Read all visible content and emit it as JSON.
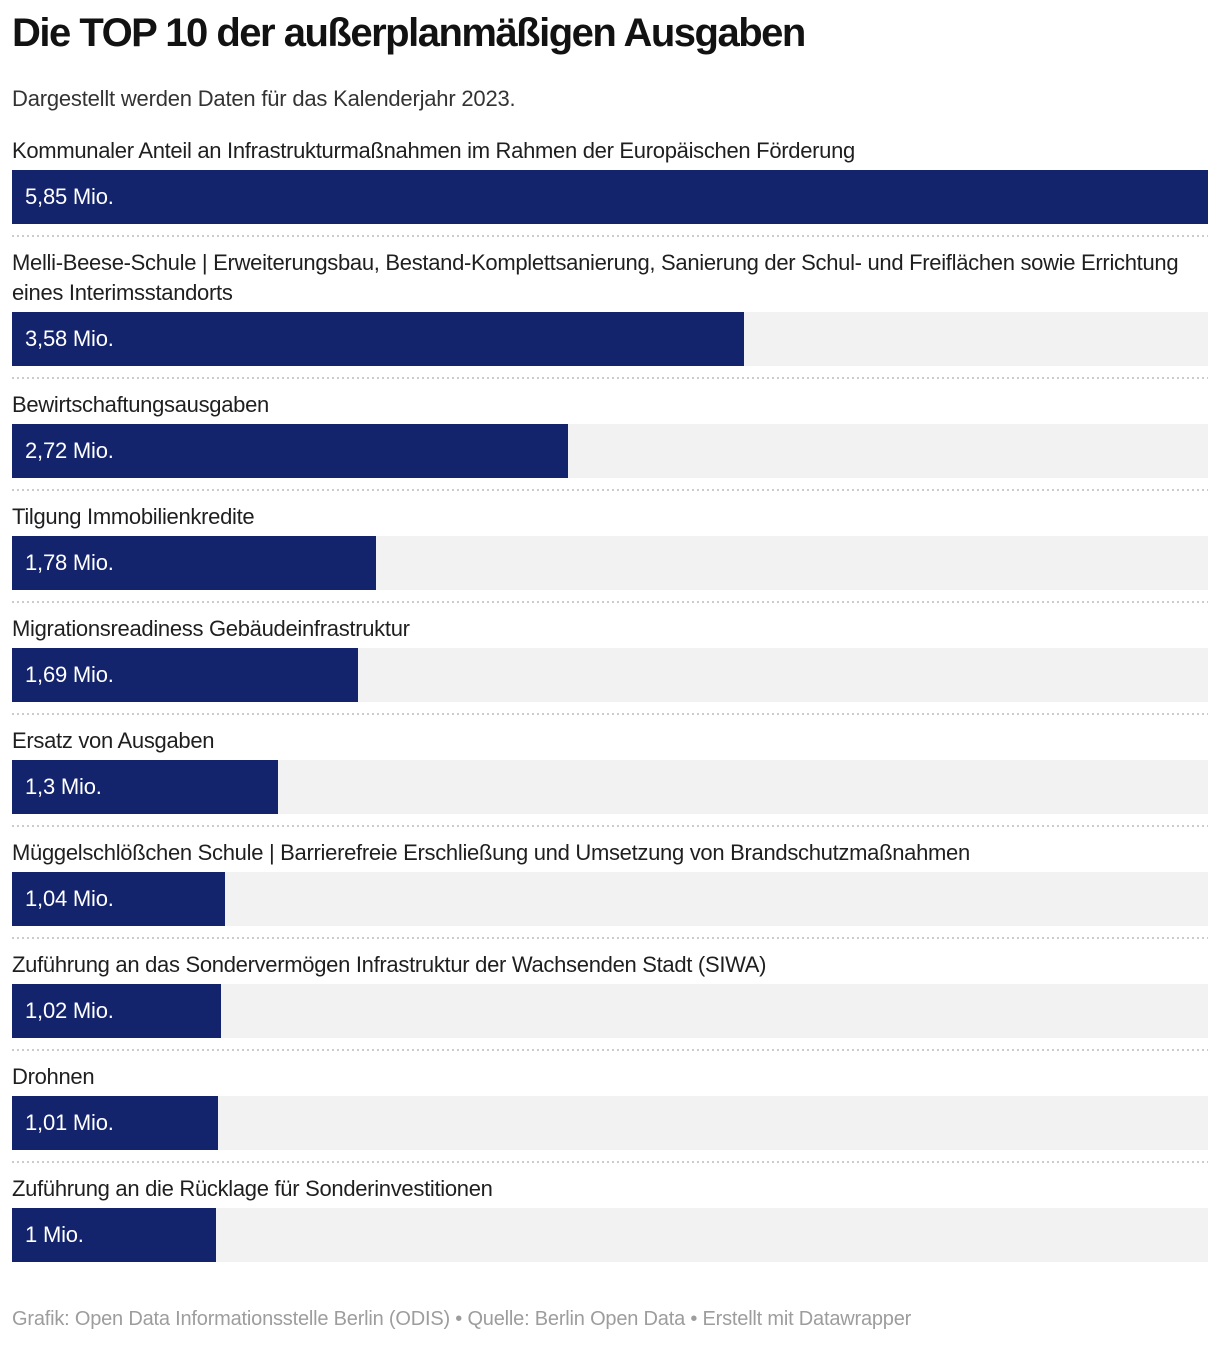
{
  "header": {
    "title": "Die TOP 10 der außerplanmäßigen Ausgaben",
    "subtitle": "Dargestellt werden Daten für das Kalenderjahr 2023."
  },
  "footer": {
    "text": "Grafik: Open Data Informationsstelle Berlin (ODIS) • Quelle: Berlin Open Data • Erstellt mit Datawrapper"
  },
  "colors": {
    "bar": "#13246d",
    "track": "#f2f2f2",
    "separator": "#cccccc",
    "value_text": "#ffffff"
  },
  "chart_data": {
    "type": "bar",
    "orientation": "horizontal",
    "title": "Die TOP 10 der außerplanmäßigen Ausgaben",
    "subtitle": "Dargestellt werden Daten für das Kalenderjahr 2023.",
    "unit": "Mio.",
    "xlim": [
      0,
      5.85
    ],
    "grid": false,
    "legend": false,
    "categories": [
      "Kommunaler Anteil an Infrastrukturmaßnahmen im Rahmen der Europäischen Förderung",
      "Melli-Beese-Schule | Erweiterungsbau, Bestand-Komplettsanierung, Sanierung der Schul- und Freiflächen sowie Errichtung eines Interimsstandorts",
      "Bewirtschaftungsausgaben",
      "Tilgung Immobilienkredite",
      "Migrationsreadiness Gebäudeinfrastruktur",
      "Ersatz von Ausgaben",
      "Müggelschlößchen Schule | Barrierefreie Erschließung und Umsetzung von Brandschutzmaßnahmen",
      "Zuführung an das Sondervermögen Infrastruktur der Wachsenden Stadt (SIWA)",
      "Drohnen",
      "Zuführung an die Rücklage für Sonderinvestitionen"
    ],
    "values": [
      5.85,
      3.58,
      2.72,
      1.78,
      1.69,
      1.3,
      1.04,
      1.02,
      1.01,
      1.0
    ],
    "value_labels": [
      "5,85 Mio.",
      "3,58 Mio.",
      "2,72 Mio.",
      "1,78 Mio.",
      "1,69 Mio.",
      "1,3 Mio.",
      "1,04 Mio.",
      "1,02 Mio.",
      "1,01 Mio.",
      "1 Mio."
    ]
  }
}
